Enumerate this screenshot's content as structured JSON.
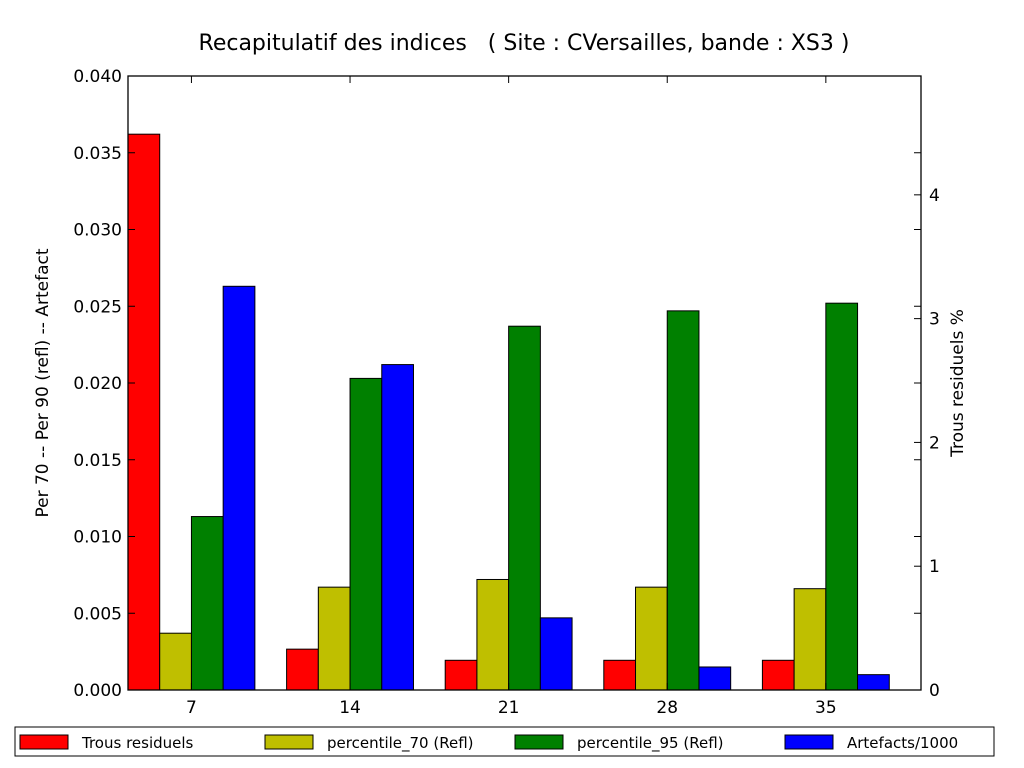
{
  "chart_data": {
    "type": "bar",
    "title": "Recapitulatif des indices   ( Site : CVersailles, bande : XS3 )",
    "categories": [
      "7",
      "14",
      "21",
      "28",
      "35"
    ],
    "ylabel_left": "Per 70 -- Per 90 (refl) -- Artefact",
    "ylabel_right": "Trous residuels %",
    "ylim_left": [
      0,
      0.04
    ],
    "yticks_left": [
      "0.000",
      "0.005",
      "0.010",
      "0.015",
      "0.020",
      "0.025",
      "0.030",
      "0.035",
      "0.040"
    ],
    "ylim_right": [
      0,
      4.96
    ],
    "yticks_right": [
      "0",
      "1",
      "2",
      "3",
      "4"
    ],
    "grid": false,
    "legend_position": "bottom",
    "series": [
      {
        "name": "Trous residuels",
        "axis": "right",
        "color": "#ff0000",
        "values": [
          4.49,
          0.33,
          0.24,
          0.24,
          0.24
        ]
      },
      {
        "name": "percentile_70 (Refl)",
        "axis": "left",
        "color": "#bfbf00",
        "values": [
          0.0037,
          0.0067,
          0.0072,
          0.0067,
          0.0066
        ]
      },
      {
        "name": "percentile_95 (Refl)",
        "axis": "left",
        "color": "#008000",
        "values": [
          0.0113,
          0.0203,
          0.0237,
          0.0247,
          0.0252
        ]
      },
      {
        "name": "Artefacts/1000",
        "axis": "left",
        "color": "#0000ff",
        "values": [
          0.0263,
          0.0212,
          0.0047,
          0.0015,
          0.001
        ]
      }
    ]
  }
}
